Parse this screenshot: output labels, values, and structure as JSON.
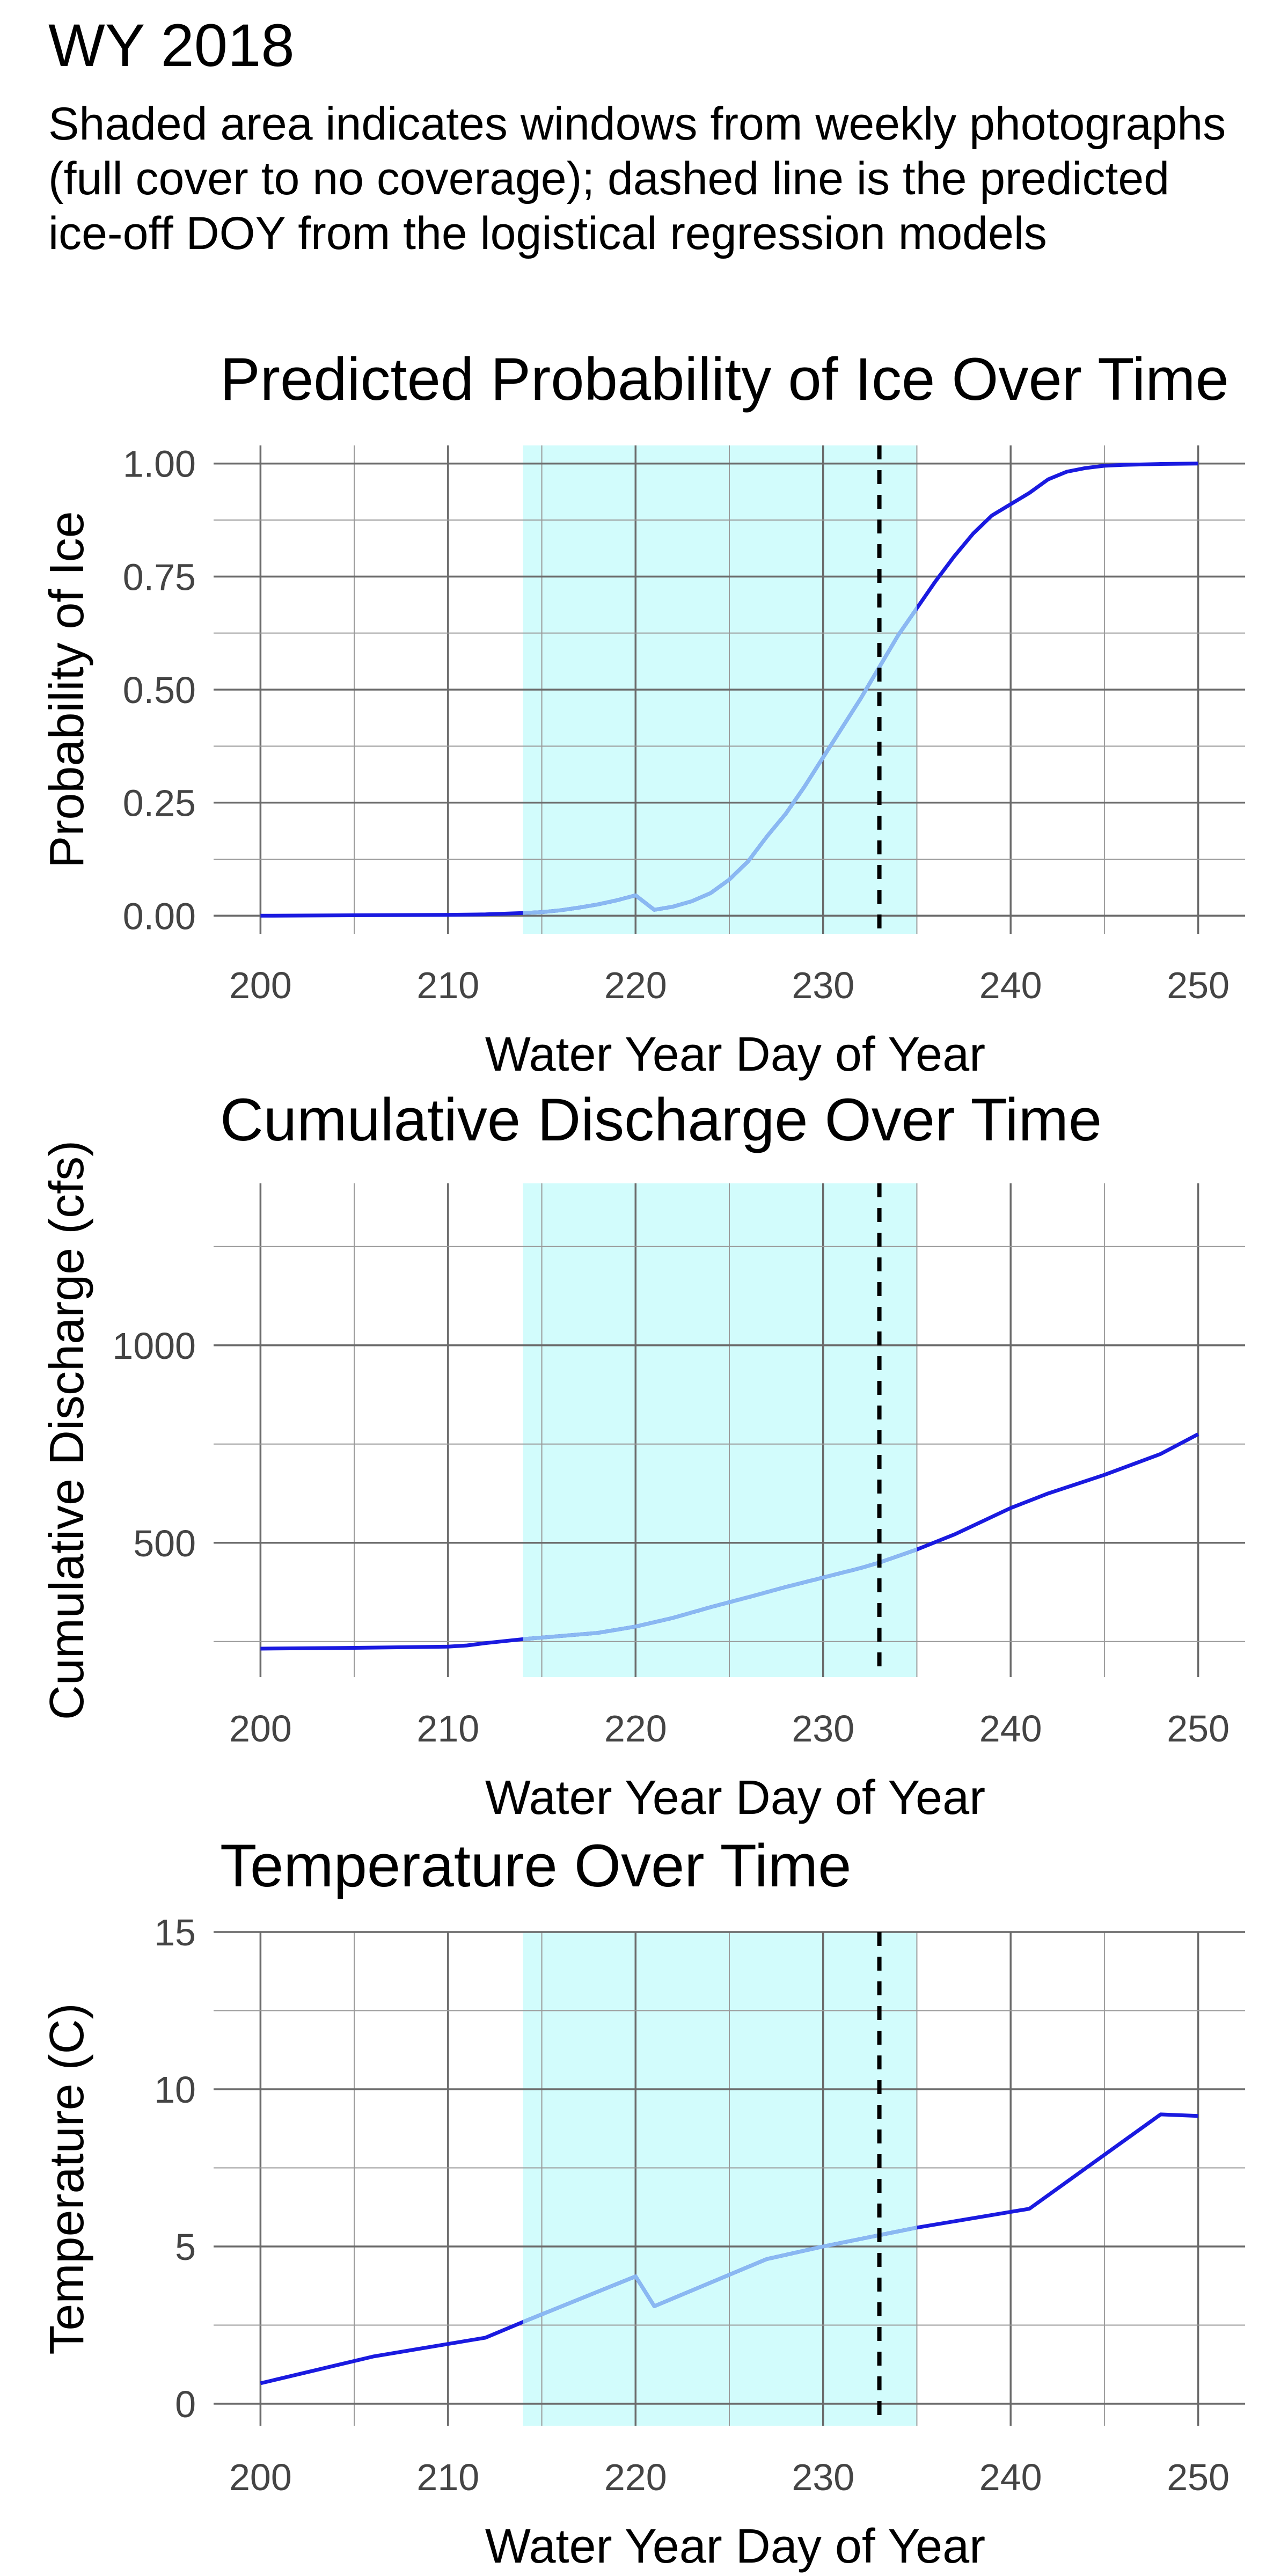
{
  "page": {
    "title": "WY 2018",
    "subtitle": "Shaded area indicates windows from weekly photographs (full cover to no coverage); dashed line is the predicted ice-off DOY from the logistical regression models"
  },
  "colors": {
    "line_dark": "#1a1ae0",
    "line_light": "#8ab8f2",
    "shade": "#d2fcfc",
    "grid_major": "#6b6b6b",
    "grid_minor": "#9a9a9a",
    "dashed": "#000000"
  },
  "chart_data": [
    {
      "type": "line",
      "title": "Predicted Probability of Ice Over Time",
      "xlabel": "Water Year Day of Year",
      "ylabel": "Probability of Ice",
      "xlim": [
        197.5,
        252.5
      ],
      "ylim": [
        -0.04,
        1.04
      ],
      "xticks": [
        200,
        210,
        220,
        230,
        240,
        250
      ],
      "xtick_labels": [
        "200",
        "210",
        "220",
        "230",
        "240",
        "250"
      ],
      "yticks": [
        0,
        0.25,
        0.5,
        0.75,
        1.0
      ],
      "ytick_labels": [
        "0.00",
        "0.25",
        "0.50",
        "0.75",
        "1.00"
      ],
      "shaded_window": [
        214,
        235
      ],
      "predicted_ice_off_doy": 233,
      "grid": true,
      "series": [
        {
          "x": [
            200,
            205,
            210,
            212,
            214,
            215,
            216,
            217,
            218,
            219,
            220,
            221,
            222,
            223,
            224,
            225,
            226,
            227,
            228,
            229,
            230,
            231,
            232,
            233,
            234,
            235,
            236,
            237,
            238,
            239,
            240,
            241,
            242,
            243,
            244,
            245,
            246,
            248,
            250
          ],
          "y": [
            0.0,
            0.001,
            0.002,
            0.003,
            0.006,
            0.008,
            0.012,
            0.018,
            0.025,
            0.034,
            0.045,
            0.013,
            0.02,
            0.032,
            0.05,
            0.08,
            0.12,
            0.175,
            0.225,
            0.285,
            0.35,
            0.415,
            0.48,
            0.55,
            0.62,
            0.68,
            0.74,
            0.795,
            0.845,
            0.885,
            0.91,
            0.935,
            0.965,
            0.982,
            0.99,
            0.995,
            0.997,
            0.999,
            1.0
          ]
        }
      ]
    },
    {
      "type": "line",
      "title": "Cumulative Discharge Over Time",
      "xlabel": "Water Year Day of Year",
      "ylabel": "Cumulative Discharge (cfs)",
      "xlim": [
        197.5,
        252.5
      ],
      "ylim": [
        160,
        1410
      ],
      "xticks": [
        200,
        210,
        220,
        230,
        240,
        250
      ],
      "xtick_labels": [
        "200",
        "210",
        "220",
        "230",
        "240",
        "250"
      ],
      "yticks": [
        500,
        1000
      ],
      "ytick_labels": [
        "500",
        "1000"
      ],
      "yminor": [
        250,
        750,
        1250
      ],
      "shaded_window": [
        214,
        235
      ],
      "predicted_ice_off_doy": 233,
      "grid": true,
      "series": [
        {
          "x": [
            200,
            205,
            210,
            211,
            212,
            214,
            216,
            218,
            220,
            222,
            224,
            226,
            228,
            230,
            232,
            233,
            235,
            237,
            240,
            242,
            245,
            248,
            250
          ],
          "y": [
            232,
            234,
            237,
            240,
            246,
            256,
            264,
            272,
            288,
            310,
            337,
            362,
            388,
            412,
            436,
            450,
            483,
            521,
            588,
            625,
            672,
            725,
            775
          ]
        }
      ]
    },
    {
      "type": "line",
      "title": "Temperature Over Time",
      "xlabel": "Water Year Day of Year",
      "ylabel": "Temperature (C)",
      "xlim": [
        197.5,
        252.5
      ],
      "ylim": [
        -0.7,
        15.0
      ],
      "xticks": [
        200,
        210,
        220,
        230,
        240,
        250
      ],
      "xtick_labels": [
        "200",
        "210",
        "220",
        "230",
        "240",
        "250"
      ],
      "yticks": [
        0,
        5,
        10,
        15
      ],
      "ytick_labels": [
        "0",
        "5",
        "10",
        "15"
      ],
      "shaded_window": [
        214,
        235
      ],
      "predicted_ice_off_doy": 233,
      "grid": true,
      "series": [
        {
          "x": [
            200,
            206,
            212,
            214,
            220,
            221,
            227,
            230,
            235,
            241,
            248,
            250
          ],
          "y": [
            0.65,
            1.5,
            2.1,
            2.6,
            4.05,
            3.1,
            4.6,
            5.0,
            5.6,
            6.2,
            9.2,
            9.15
          ]
        }
      ]
    }
  ]
}
